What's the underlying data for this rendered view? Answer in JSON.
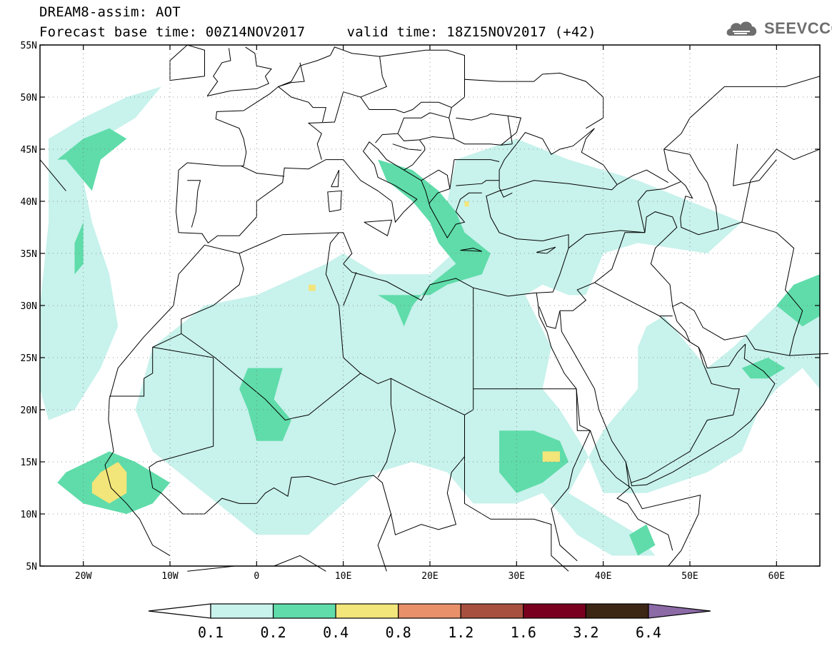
{
  "title": {
    "line1": "DREAM8-assim: AOT",
    "line2": "Forecast base time: 00Z14NOV2017     valid time: 18Z15NOV2017 (+42)"
  },
  "logo": {
    "icon": "cloud-icon",
    "text": "SEEVCCC",
    "color": "#707070"
  },
  "map": {
    "variable": "AOT",
    "extent": {
      "lon_min": -25,
      "lon_max": 65,
      "lat_min": 5,
      "lat_max": 55
    },
    "lat_ticks": [
      {
        "value": 55,
        "label": "55N"
      },
      {
        "value": 50,
        "label": "50N"
      },
      {
        "value": 45,
        "label": "45N"
      },
      {
        "value": 40,
        "label": "40N"
      },
      {
        "value": 35,
        "label": "35N"
      },
      {
        "value": 30,
        "label": "30N"
      },
      {
        "value": 25,
        "label": "25N"
      },
      {
        "value": 20,
        "label": "20N"
      },
      {
        "value": 15,
        "label": "15N"
      },
      {
        "value": 10,
        "label": "10N"
      },
      {
        "value": 5,
        "label": "5N"
      }
    ],
    "lon_ticks": [
      {
        "value": -20,
        "label": "20W"
      },
      {
        "value": -10,
        "label": "10W"
      },
      {
        "value": 0,
        "label": "0"
      },
      {
        "value": 10,
        "label": "10E"
      },
      {
        "value": 20,
        "label": "20E"
      },
      {
        "value": 30,
        "label": "30E"
      },
      {
        "value": 40,
        "label": "40E"
      },
      {
        "value": 50,
        "label": "50E"
      },
      {
        "value": 60,
        "label": "60E"
      }
    ],
    "grid": "dotted",
    "fields": [
      {
        "level": 0.1,
        "color": "#c8f2ec",
        "regions": [
          [
            [
              -24,
              46
            ],
            [
              -20,
              48
            ],
            [
              -15,
              50
            ],
            [
              -11,
              51
            ],
            [
              -14,
              48
            ],
            [
              -18,
              46
            ],
            [
              -20,
              42
            ],
            [
              -19,
              38
            ],
            [
              -17,
              33
            ],
            [
              -16,
              28
            ],
            [
              -18,
              24
            ],
            [
              -21,
              20
            ],
            [
              -24,
              19
            ],
            [
              -25,
              22
            ],
            [
              -25,
              30
            ],
            [
              -24,
              38
            ]
          ],
          [
            [
              -12,
              26
            ],
            [
              -6,
              30
            ],
            [
              0,
              31
            ],
            [
              8,
              34
            ],
            [
              10,
              35
            ],
            [
              14,
              33
            ],
            [
              20,
              33
            ],
            [
              24,
              36
            ],
            [
              22,
              40
            ],
            [
              23,
              44
            ],
            [
              30,
              46
            ],
            [
              36,
              44
            ],
            [
              44,
              42
            ],
            [
              50,
              40
            ],
            [
              56,
              38
            ],
            [
              52,
              35
            ],
            [
              44,
              36
            ],
            [
              40,
              35
            ],
            [
              38,
              31
            ],
            [
              36,
              31
            ],
            [
              33,
              32
            ],
            [
              31,
              31
            ],
            [
              34,
              26
            ],
            [
              33,
              22
            ],
            [
              35,
              20
            ],
            [
              38,
              16
            ],
            [
              40,
              12
            ],
            [
              45,
              12
            ],
            [
              52,
              14
            ],
            [
              56,
              16
            ],
            [
              58,
              20
            ],
            [
              60,
              22
            ],
            [
              63,
              24
            ],
            [
              65,
              22
            ],
            [
              65,
              33
            ],
            [
              60,
              30
            ],
            [
              55,
              26
            ],
            [
              52,
              24
            ],
            [
              50,
              26
            ],
            [
              47,
              29
            ],
            [
              45,
              28
            ],
            [
              44,
              26
            ],
            [
              44,
              22
            ],
            [
              40,
              18
            ],
            [
              36,
              12
            ],
            [
              44,
              8
            ],
            [
              46,
              6
            ],
            [
              41,
              6
            ],
            [
              37,
              8
            ],
            [
              33,
              12
            ],
            [
              30,
              11
            ],
            [
              25,
              11
            ],
            [
              22,
              14
            ],
            [
              18,
              15
            ],
            [
              14,
              14
            ],
            [
              10,
              11
            ],
            [
              6,
              8
            ],
            [
              0,
              8
            ],
            [
              -6,
              12
            ],
            [
              -12,
              16
            ],
            [
              -14,
              20
            ],
            [
              -13,
              23
            ]
          ]
        ]
      },
      {
        "level": 0.2,
        "color": "#5fdcaa",
        "regions": [
          [
            [
              -23,
              44
            ],
            [
              -20,
              46
            ],
            [
              -17,
              47
            ],
            [
              -15,
              46
            ],
            [
              -18,
              44
            ],
            [
              -19,
              41
            ],
            [
              -20,
              42
            ],
            [
              -22,
              44
            ]
          ],
          [
            [
              -21,
              36
            ],
            [
              -20,
              38
            ],
            [
              -20,
              34
            ],
            [
              -21,
              33
            ]
          ],
          [
            [
              -22,
              14
            ],
            [
              -17,
              16
            ],
            [
              -14,
              15
            ],
            [
              -10,
              13
            ],
            [
              -12,
              11
            ],
            [
              -15,
              10
            ],
            [
              -20,
              11
            ],
            [
              -23,
              13
            ]
          ],
          [
            [
              -1,
              24
            ],
            [
              3,
              24
            ],
            [
              2,
              21
            ],
            [
              4,
              19
            ],
            [
              3,
              17
            ],
            [
              0,
              17
            ],
            [
              -1,
              20
            ],
            [
              -2,
              22
            ]
          ],
          [
            [
              15,
              31
            ],
            [
              20,
              31
            ],
            [
              22,
              32
            ],
            [
              26,
              33
            ],
            [
              27,
              35
            ],
            [
              24,
              37
            ],
            [
              23,
              39
            ],
            [
              21,
              41
            ],
            [
              18,
              43
            ],
            [
              14,
              44
            ],
            [
              15,
              42
            ],
            [
              18,
              40
            ],
            [
              20,
              38
            ],
            [
              21,
              36
            ],
            [
              23,
              34
            ],
            [
              20,
              32
            ],
            [
              18,
              30
            ],
            [
              17,
              28
            ],
            [
              16,
              30
            ],
            [
              14,
              31
            ]
          ],
          [
            [
              28,
              18
            ],
            [
              32,
              18
            ],
            [
              35,
              17
            ],
            [
              36,
              15
            ],
            [
              33,
              13
            ],
            [
              30,
              12
            ],
            [
              28,
              14
            ]
          ],
          [
            [
              43,
              8
            ],
            [
              45,
              9
            ],
            [
              46,
              7
            ],
            [
              44,
              6
            ]
          ],
          [
            [
              60,
              30
            ],
            [
              62,
              32
            ],
            [
              65,
              33
            ],
            [
              65,
              29
            ],
            [
              63,
              28
            ]
          ],
          [
            [
              56,
              24
            ],
            [
              59,
              25
            ],
            [
              61,
              24
            ],
            [
              59,
              23
            ],
            [
              57,
              23
            ]
          ]
        ]
      },
      {
        "level": 0.4,
        "color": "#f2e57a",
        "regions": [
          [
            [
              -18,
              14
            ],
            [
              -16,
              15
            ],
            [
              -15,
              14
            ],
            [
              -15,
              12
            ],
            [
              -17,
              11
            ],
            [
              -19,
              12
            ],
            [
              -19,
              13
            ]
          ],
          [
            [
              33,
              16
            ],
            [
              35,
              16
            ],
            [
              35,
              15
            ],
            [
              33,
              15
            ]
          ],
          [
            [
              6,
              32
            ],
            [
              6.8,
              32
            ],
            [
              6.8,
              31.4
            ],
            [
              6,
              31.4
            ]
          ],
          [
            [
              24,
              40
            ],
            [
              24.5,
              40
            ],
            [
              24.5,
              39.5
            ],
            [
              24,
              39.5
            ]
          ]
        ]
      }
    ]
  },
  "colorbar": {
    "colors": [
      "#ffffff",
      "#c8f2ec",
      "#5fdcaa",
      "#f2e57a",
      "#e8906a",
      "#a85040",
      "#7a0020",
      "#3c2614",
      "#8b6aa6"
    ],
    "labels": [
      "0.1",
      "0.2",
      "0.4",
      "0.8",
      "1.2",
      "1.6",
      "3.2",
      "6.4"
    ]
  }
}
